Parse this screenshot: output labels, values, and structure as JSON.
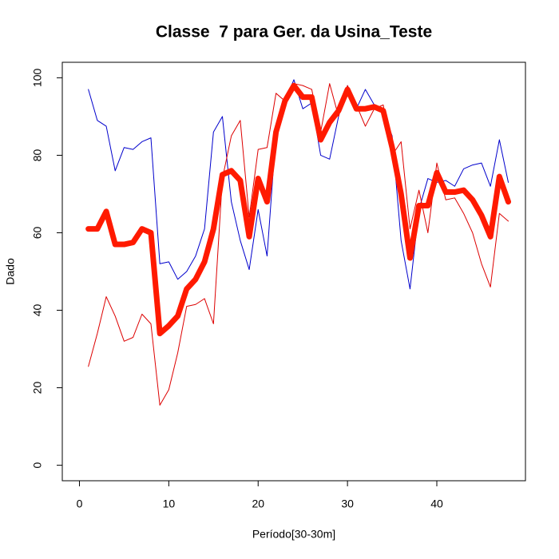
{
  "chart_data": {
    "type": "line",
    "title": "Classe  7 para Ger. da Usina_Teste",
    "xlabel": "Período[30-30m]",
    "ylabel": "Dado",
    "x": [
      1,
      2,
      3,
      4,
      5,
      6,
      7,
      8,
      9,
      10,
      11,
      12,
      13,
      14,
      15,
      16,
      17,
      18,
      19,
      20,
      21,
      22,
      23,
      24,
      25,
      26,
      27,
      28,
      29,
      30,
      31,
      32,
      33,
      34,
      35,
      36,
      37,
      38,
      39,
      40,
      41,
      42,
      43,
      44,
      45,
      46,
      47,
      48
    ],
    "series": [
      {
        "color": "#0000cc",
        "width": 1,
        "values": [
          97,
          89,
          87.5,
          76,
          82,
          81.5,
          83.5,
          84.5,
          52,
          52.5,
          48,
          50,
          54,
          61,
          86,
          90,
          68,
          58,
          50.5,
          66,
          54,
          86,
          94,
          99.5,
          92,
          93.5,
          80,
          79,
          90,
          98,
          92,
          97,
          93,
          91,
          85,
          58,
          45.5,
          66,
          74,
          73,
          73.5,
          72,
          76.5,
          77.5,
          78,
          72,
          84,
          73
        ]
      },
      {
        "color": "#dd0000",
        "width": 1,
        "values": [
          25.5,
          34,
          43.5,
          38.5,
          32,
          33,
          39,
          36.5,
          15.5,
          19.5,
          29,
          41,
          41.5,
          43,
          36.5,
          74,
          85,
          89,
          64,
          81.5,
          82,
          96,
          94,
          98.5,
          98,
          97,
          86,
          98.5,
          90,
          98,
          93,
          87.5,
          92,
          93,
          80,
          83.5,
          61,
          71,
          60,
          78,
          68.5,
          69,
          65,
          60,
          52,
          46,
          65,
          63
        ]
      },
      {
        "color": "#ff1a00",
        "width": 7,
        "values": [
          61,
          61,
          65.5,
          57,
          57,
          57.5,
          61,
          60,
          34,
          36,
          38.5,
          45.5,
          48,
          52.5,
          61,
          75,
          76,
          73.5,
          59,
          74,
          68,
          86,
          94,
          98,
          95,
          95,
          84,
          88.5,
          91.5,
          97,
          92,
          92,
          92.5,
          91.5,
          82,
          70,
          53.5,
          67,
          67,
          75.5,
          70.5,
          70.5,
          71,
          68.5,
          64.5,
          59,
          74.5,
          68
        ]
      }
    ],
    "xlim": [
      -1.92,
      49.92
    ],
    "xticks": [
      0,
      10,
      20,
      30,
      40
    ],
    "ylim": [
      -4,
      104
    ],
    "yticks": [
      0,
      20,
      40,
      60,
      80,
      100
    ]
  }
}
